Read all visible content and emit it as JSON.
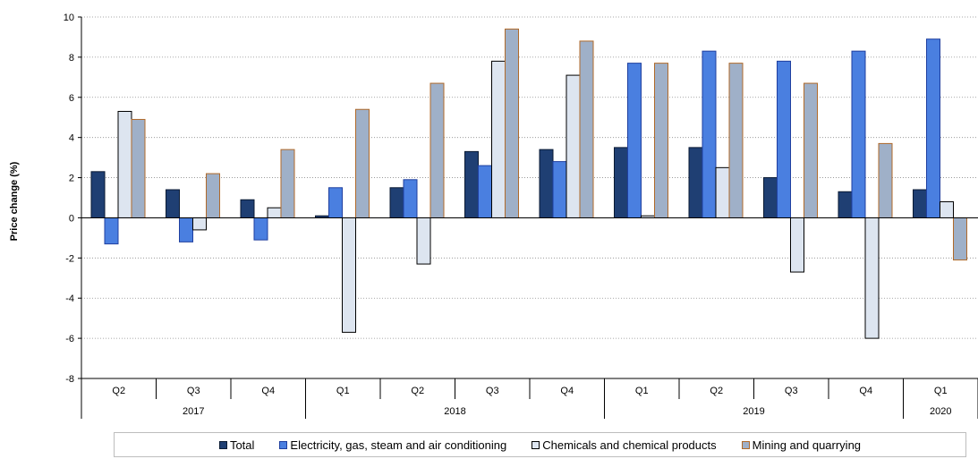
{
  "chart_data": {
    "type": "bar",
    "title": "",
    "xlabel": "",
    "ylabel": "Price change (%)",
    "ylim": [
      -8,
      10
    ],
    "yticks": [
      -8,
      -6,
      -4,
      -2,
      0,
      2,
      4,
      6,
      8,
      10
    ],
    "grid": true,
    "legend_position": "bottom",
    "categories": [
      "Q2",
      "Q3",
      "Q4",
      "Q1",
      "Q2",
      "Q3",
      "Q4",
      "Q1",
      "Q2",
      "Q3",
      "Q4",
      "Q1"
    ],
    "years": [
      {
        "label": "2017",
        "count": 3
      },
      {
        "label": "2018",
        "count": 4
      },
      {
        "label": "2019",
        "count": 4
      },
      {
        "label": "2020",
        "count": 1
      }
    ],
    "series": [
      {
        "name": "Total",
        "fill": "#1f3f73",
        "stroke": "#0a1a33",
        "values": [
          2.3,
          1.4,
          0.9,
          0.1,
          1.5,
          3.3,
          3.4,
          3.5,
          3.5,
          2.0,
          1.3,
          1.4
        ]
      },
      {
        "name": "Electricity, gas, steam and air conditioning",
        "fill": "#4a7fe0",
        "stroke": "#1f3f9f",
        "values": [
          -1.3,
          -1.2,
          -1.1,
          1.5,
          1.9,
          2.6,
          2.8,
          7.7,
          8.3,
          7.8,
          8.3,
          8.9
        ]
      },
      {
        "name": "Chemicals and chemical products",
        "fill": "#dde5f0",
        "stroke": "#000000",
        "values": [
          5.3,
          -0.6,
          0.5,
          -5.7,
          -2.3,
          7.8,
          7.1,
          0.1,
          2.5,
          -2.7,
          -6.0,
          0.8
        ]
      },
      {
        "name": "Mining and quarrying",
        "fill": "#9fb0c8",
        "stroke": "#b06a2a",
        "values": [
          4.9,
          2.2,
          3.4,
          5.4,
          6.7,
          9.4,
          8.8,
          7.7,
          7.7,
          6.7,
          3.7,
          -2.1
        ]
      }
    ]
  }
}
